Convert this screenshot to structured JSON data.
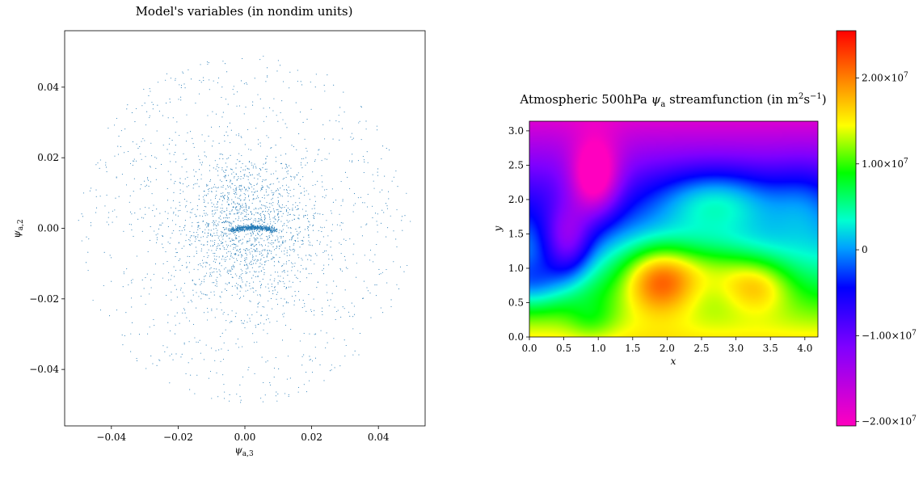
{
  "chart_data": [
    {
      "type": "scatter",
      "title": "Model's variables (in nondim units)",
      "xlabel": "ψ_a,3",
      "ylabel": "ψ_a,2",
      "xlim": [
        -0.054,
        0.054
      ],
      "ylim": [
        -0.056,
        0.056
      ],
      "x_ticks": [
        "−0.04",
        "−0.02",
        "0.00",
        "0.02",
        "0.04"
      ],
      "x_tick_values": [
        -0.04,
        -0.02,
        0.0,
        0.02,
        0.04
      ],
      "y_ticks": [
        "−0.04",
        "−0.02",
        "0.00",
        "0.02",
        "0.04"
      ],
      "y_tick_values": [
        -0.04,
        -0.02,
        0.0,
        0.02,
        0.04
      ],
      "point_color": "#1f77b4",
      "grid": false,
      "series": [
        {
          "x": [
            0.0,
            0.002,
            0.004,
            0.006,
            -0.002,
            -0.004,
            0.001,
            0.003,
            0.005,
            0.007,
            -0.001,
            -0.003,
            0.008,
            0.0015,
            0.0035,
            0.0055,
            -0.0015,
            0.0025,
            0.0045,
            0.0065
          ],
          "y": [
            -0.0005,
            0.0,
            0.0003,
            0.0005,
            -0.0007,
            -0.0008,
            -0.0003,
            0.0002,
            0.0004,
            0.0002,
            -0.0006,
            -0.0007,
            0.0,
            0.0001,
            0.0003,
            0.0004,
            -0.0004,
            0.0002,
            0.0004,
            0.0003
          ]
        }
      ]
    },
    {
      "type": "heatmap",
      "title_parts": [
        "Atmospheric 500hPa ",
        "ψ",
        "a",
        " streamfunction (in m",
        "2",
        "s",
        "−1",
        ")"
      ],
      "xlabel": "x",
      "ylabel": "y",
      "xlim": [
        0.0,
        4.19
      ],
      "ylim": [
        0.0,
        3.14
      ],
      "x_ticks": [
        "0.0",
        "0.5",
        "1.0",
        "1.5",
        "2.0",
        "2.5",
        "3.0",
        "3.5",
        "4.0"
      ],
      "x_tick_values": [
        0.0,
        0.5,
        1.0,
        1.5,
        2.0,
        2.5,
        3.0,
        3.5,
        4.0
      ],
      "y_ticks": [
        "0.0",
        "0.5",
        "1.0",
        "1.5",
        "2.0",
        "2.5",
        "3.0"
      ],
      "y_tick_values": [
        0.0,
        0.5,
        1.0,
        1.5,
        2.0,
        2.5,
        3.0
      ],
      "colormap": "gist_rainbow_r",
      "vmin": -20500000.0,
      "vmax": 25500000.0,
      "colorbar_ticks": [
        {
          "value": 20000000.0,
          "mantissa": "2.00×10",
          "exp": "7"
        },
        {
          "value": 10000000.0,
          "mantissa": "1.00×10",
          "exp": "7"
        },
        {
          "value": 0,
          "mantissa": "0",
          "exp": ""
        },
        {
          "value": -10000000.0,
          "mantissa": "−1.00×10",
          "exp": "7"
        },
        {
          "value": -20000000.0,
          "mantissa": "−2.00×10",
          "exp": "7"
        }
      ],
      "field_features": [
        {
          "kind": "max",
          "x": 1.9,
          "y": 0.85,
          "value": 25000000.0
        },
        {
          "kind": "max",
          "x": 3.3,
          "y": 0.75,
          "value": 19000000.0
        },
        {
          "kind": "min",
          "x": 1.0,
          "y": 2.3,
          "value": -20000000.0
        },
        {
          "kind": "min",
          "x": 0.7,
          "y": 1.7,
          "value": -19000000.0
        }
      ]
    }
  ]
}
